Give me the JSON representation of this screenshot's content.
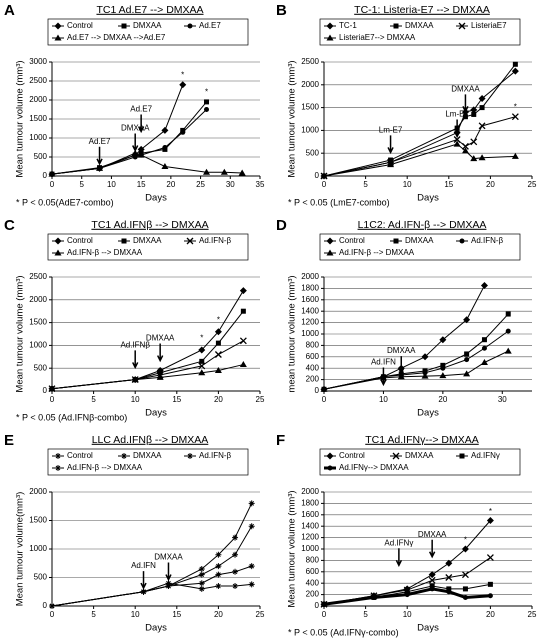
{
  "chart_data": [
    {
      "type": "line",
      "label": "A",
      "title": "TC1 Ad.E7 --> DMXAA",
      "xlabel": "Days",
      "ylabel": "Mean tumour volume (mm³)",
      "footnote": "* P < 0.05(AdE7-combo)",
      "xlim": [
        0,
        35
      ],
      "xticks": [
        0,
        5,
        10,
        15,
        20,
        25,
        30,
        35
      ],
      "ylim": [
        0,
        3000
      ],
      "yticks": [
        0,
        500,
        1000,
        1500,
        2000,
        2500,
        3000
      ],
      "grid": true,
      "annotations": [
        "Ad.E7",
        "DMXAA",
        "Ad.E7",
        "*",
        "*"
      ],
      "series": [
        {
          "name": "Control",
          "color": "#000",
          "marker": "diamond",
          "x": [
            0,
            8,
            14,
            15,
            19,
            22
          ],
          "values": [
            50,
            200,
            550,
            700,
            1200,
            2400
          ]
        },
        {
          "name": "DMXAA",
          "color": "#000",
          "marker": "square",
          "x": [
            0,
            8,
            14,
            15,
            19,
            22,
            26
          ],
          "values": [
            50,
            220,
            550,
            600,
            700,
            1200,
            1950
          ]
        },
        {
          "name": "Ad.E7",
          "color": "#000",
          "marker": "circle",
          "x": [
            0,
            8,
            14,
            15,
            19,
            22,
            26
          ],
          "values": [
            50,
            200,
            500,
            550,
            750,
            1150,
            1750
          ]
        },
        {
          "name": "Ad.E7 --> DMXAA -->Ad.E7",
          "color": "#000",
          "marker": "triangle",
          "x": [
            0,
            8,
            14,
            15,
            19,
            26,
            29,
            32
          ],
          "values": [
            50,
            200,
            600,
            550,
            250,
            100,
            100,
            80
          ]
        }
      ]
    },
    {
      "type": "line",
      "label": "B",
      "title": "TC-1: Listeria-E7 --> DMXAA",
      "xlabel": "Days",
      "ylabel": "Mean tumour volume (mm³)",
      "footnote": "* P < 0.05 (LmE7-combo)",
      "xlim": [
        0,
        25
      ],
      "xticks": [
        0,
        5,
        10,
        15,
        20,
        25
      ],
      "ylim": [
        0,
        2500
      ],
      "yticks": [
        0,
        500,
        1000,
        1500,
        2000,
        2500
      ],
      "grid": true,
      "annotations": [
        "Lm-E7",
        "DMXAA",
        "Lm-E7",
        "*"
      ],
      "series": [
        {
          "name": "TC-1",
          "color": "#000",
          "marker": "diamond",
          "x": [
            0,
            8,
            16,
            17,
            18,
            19,
            23
          ],
          "values": [
            0,
            300,
            950,
            1400,
            1450,
            1700,
            2300
          ]
        },
        {
          "name": "DMXAA",
          "color": "#000",
          "marker": "square",
          "x": [
            0,
            8,
            16,
            17,
            18,
            19,
            23
          ],
          "values": [
            0,
            350,
            1050,
            1300,
            1350,
            1500,
            2450
          ]
        },
        {
          "name": "ListeriaE7",
          "color": "#000",
          "marker": "x",
          "x": [
            0,
            8,
            16,
            17,
            18,
            19,
            23
          ],
          "values": [
            0,
            300,
            800,
            650,
            750,
            1100,
            1300
          ]
        },
        {
          "name": "ListeriaE7--> DMXAA",
          "color": "#000",
          "marker": "triangle",
          "x": [
            0,
            8,
            16,
            17,
            18,
            19,
            23
          ],
          "values": [
            0,
            250,
            700,
            550,
            380,
            400,
            430
          ]
        }
      ]
    },
    {
      "type": "line",
      "label": "C",
      "title": "TC1 Ad.IFNβ --> DMXAA",
      "xlabel": "Days",
      "ylabel": "Mean tumour volume (mm³)",
      "footnote": "* P < 0.05 (Ad.IFNβ-combo)",
      "xlim": [
        0,
        25
      ],
      "xticks": [
        0,
        5,
        10,
        15,
        20,
        25
      ],
      "ylim": [
        0,
        2500
      ],
      "yticks": [
        0,
        500,
        1000,
        1500,
        2000,
        2500
      ],
      "grid": true,
      "annotations": [
        "Ad.IFNβ",
        "DMXAA",
        "*",
        "*"
      ],
      "series": [
        {
          "name": "Control",
          "color": "#000",
          "marker": "diamond",
          "x": [
            0,
            10,
            13,
            18,
            20,
            23
          ],
          "values": [
            50,
            250,
            450,
            900,
            1300,
            2200
          ]
        },
        {
          "name": "DMXAA",
          "color": "#000",
          "marker": "square",
          "x": [
            0,
            10,
            13,
            18,
            20,
            23
          ],
          "values": [
            50,
            250,
            400,
            650,
            1050,
            1750
          ]
        },
        {
          "name": "Ad.IFN-β",
          "color": "#000",
          "marker": "x",
          "x": [
            0,
            10,
            13,
            18,
            20,
            23
          ],
          "values": [
            50,
            250,
            350,
            550,
            800,
            1100
          ]
        },
        {
          "name": "Ad.IFN-β --> DMXAA",
          "color": "#000",
          "marker": "triangle",
          "x": [
            0,
            10,
            13,
            18,
            20,
            23
          ],
          "values": [
            50,
            250,
            300,
            400,
            450,
            580
          ]
        }
      ]
    },
    {
      "type": "line",
      "label": "D",
      "title": "L1C2: Ad.IFN-β --> DMXAA",
      "xlabel": "Days",
      "ylabel": "mean tumour volume (mm³)",
      "xlim": [
        0,
        35
      ],
      "xticks": [
        0,
        10,
        20,
        30
      ],
      "ylim": [
        0,
        2000
      ],
      "yticks": [
        0,
        200,
        400,
        600,
        800,
        1000,
        1200,
        1400,
        1600,
        1800,
        2000
      ],
      "grid": true,
      "annotations": [
        "Ad.IFN",
        "DMXAA"
      ],
      "series": [
        {
          "name": "Control",
          "color": "#000",
          "marker": "diamond",
          "x": [
            0,
            10,
            13,
            17,
            20,
            24,
            27
          ],
          "values": [
            30,
            250,
            400,
            600,
            900,
            1250,
            1850
          ]
        },
        {
          "name": "DMXAA",
          "color": "#000",
          "marker": "square",
          "x": [
            0,
            10,
            13,
            17,
            20,
            24,
            27,
            31
          ],
          "values": [
            30,
            250,
            300,
            350,
            450,
            650,
            900,
            1350
          ]
        },
        {
          "name": "Ad.IFN-β",
          "color": "#000",
          "marker": "circle",
          "x": [
            0,
            10,
            13,
            17,
            20,
            24,
            27,
            31
          ],
          "values": [
            30,
            250,
            280,
            320,
            400,
            550,
            750,
            1050
          ]
        },
        {
          "name": "Ad.IFN-β --> DMXAA",
          "color": "#000",
          "marker": "triangle",
          "x": [
            0,
            10,
            13,
            17,
            20,
            24,
            27,
            31
          ],
          "values": [
            30,
            230,
            250,
            260,
            270,
            300,
            500,
            700
          ]
        }
      ]
    },
    {
      "type": "line",
      "label": "E",
      "title": "LLC Ad.IFNβ --> DMXAA",
      "xlabel": "Days",
      "ylabel": "Mean tumour volume(mm³)",
      "xlim": [
        0,
        25
      ],
      "xticks": [
        0,
        5,
        10,
        15,
        20,
        25
      ],
      "ylim": [
        0,
        2000
      ],
      "yticks": [
        0,
        500,
        1000,
        1500,
        2000
      ],
      "grid": true,
      "annotations": [
        "Ad.IFN",
        "DMXAA"
      ],
      "series": [
        {
          "name": "Control",
          "color": "#000",
          "marker": "star",
          "x": [
            0,
            11,
            14,
            18,
            20,
            22,
            24
          ],
          "values": [
            0,
            250,
            350,
            650,
            900,
            1200,
            1800
          ]
        },
        {
          "name": "DMXAA",
          "color": "#000",
          "marker": "star",
          "x": [
            0,
            11,
            14,
            18,
            20,
            22,
            24
          ],
          "values": [
            0,
            250,
            350,
            550,
            700,
            900,
            1400
          ]
        },
        {
          "name": "Ad.IFN-β",
          "color": "#000",
          "marker": "star",
          "x": [
            0,
            11,
            14,
            18,
            20,
            22,
            24
          ],
          "values": [
            0,
            250,
            350,
            400,
            550,
            600,
            700
          ]
        },
        {
          "name": "Ad.IFN-β --> DMXAA",
          "color": "#000",
          "marker": "star",
          "x": [
            0,
            11,
            14,
            18,
            20,
            22,
            24
          ],
          "values": [
            0,
            250,
            400,
            300,
            350,
            350,
            380
          ]
        }
      ]
    },
    {
      "type": "line",
      "label": "F",
      "title": "TC1 Ad.IFNγ--> DMXAA",
      "xlabel": "Days",
      "ylabel": "Mean tumour volume (mm³)",
      "footnote": "* P < 0.05 (Ad.IFNγ-combo)",
      "xlim": [
        0,
        25
      ],
      "xticks": [
        0,
        5,
        10,
        15,
        20,
        25
      ],
      "ylim": [
        0,
        2000
      ],
      "yticks": [
        0,
        200,
        400,
        600,
        800,
        1000,
        1200,
        1400,
        1600,
        1800,
        2000
      ],
      "grid": true,
      "annotations": [
        "Ad.IFNγ",
        "DMXAA",
        "*",
        "*"
      ],
      "series": [
        {
          "name": "Control",
          "color": "#000",
          "marker": "diamond",
          "x": [
            0,
            6,
            10,
            13,
            15,
            17,
            20
          ],
          "values": [
            30,
            180,
            300,
            550,
            750,
            1000,
            1500
          ]
        },
        {
          "name": "DMXAA",
          "color": "#000",
          "marker": "x",
          "x": [
            0,
            6,
            10,
            13,
            15,
            17,
            20
          ],
          "values": [
            30,
            180,
            280,
            450,
            500,
            550,
            850
          ]
        },
        {
          "name": "Ad.IFNγ",
          "color": "#000",
          "marker": "square",
          "x": [
            0,
            6,
            10,
            13,
            15,
            17,
            20
          ],
          "values": [
            30,
            150,
            250,
            350,
            300,
            300,
            380
          ]
        },
        {
          "name": "Ad.IFNγ--> DMXAA",
          "color": "#000",
          "marker": "circle",
          "line_width": 3,
          "x": [
            0,
            6,
            10,
            13,
            15,
            17,
            20
          ],
          "values": [
            30,
            150,
            200,
            300,
            250,
            150,
            180
          ]
        }
      ]
    }
  ]
}
